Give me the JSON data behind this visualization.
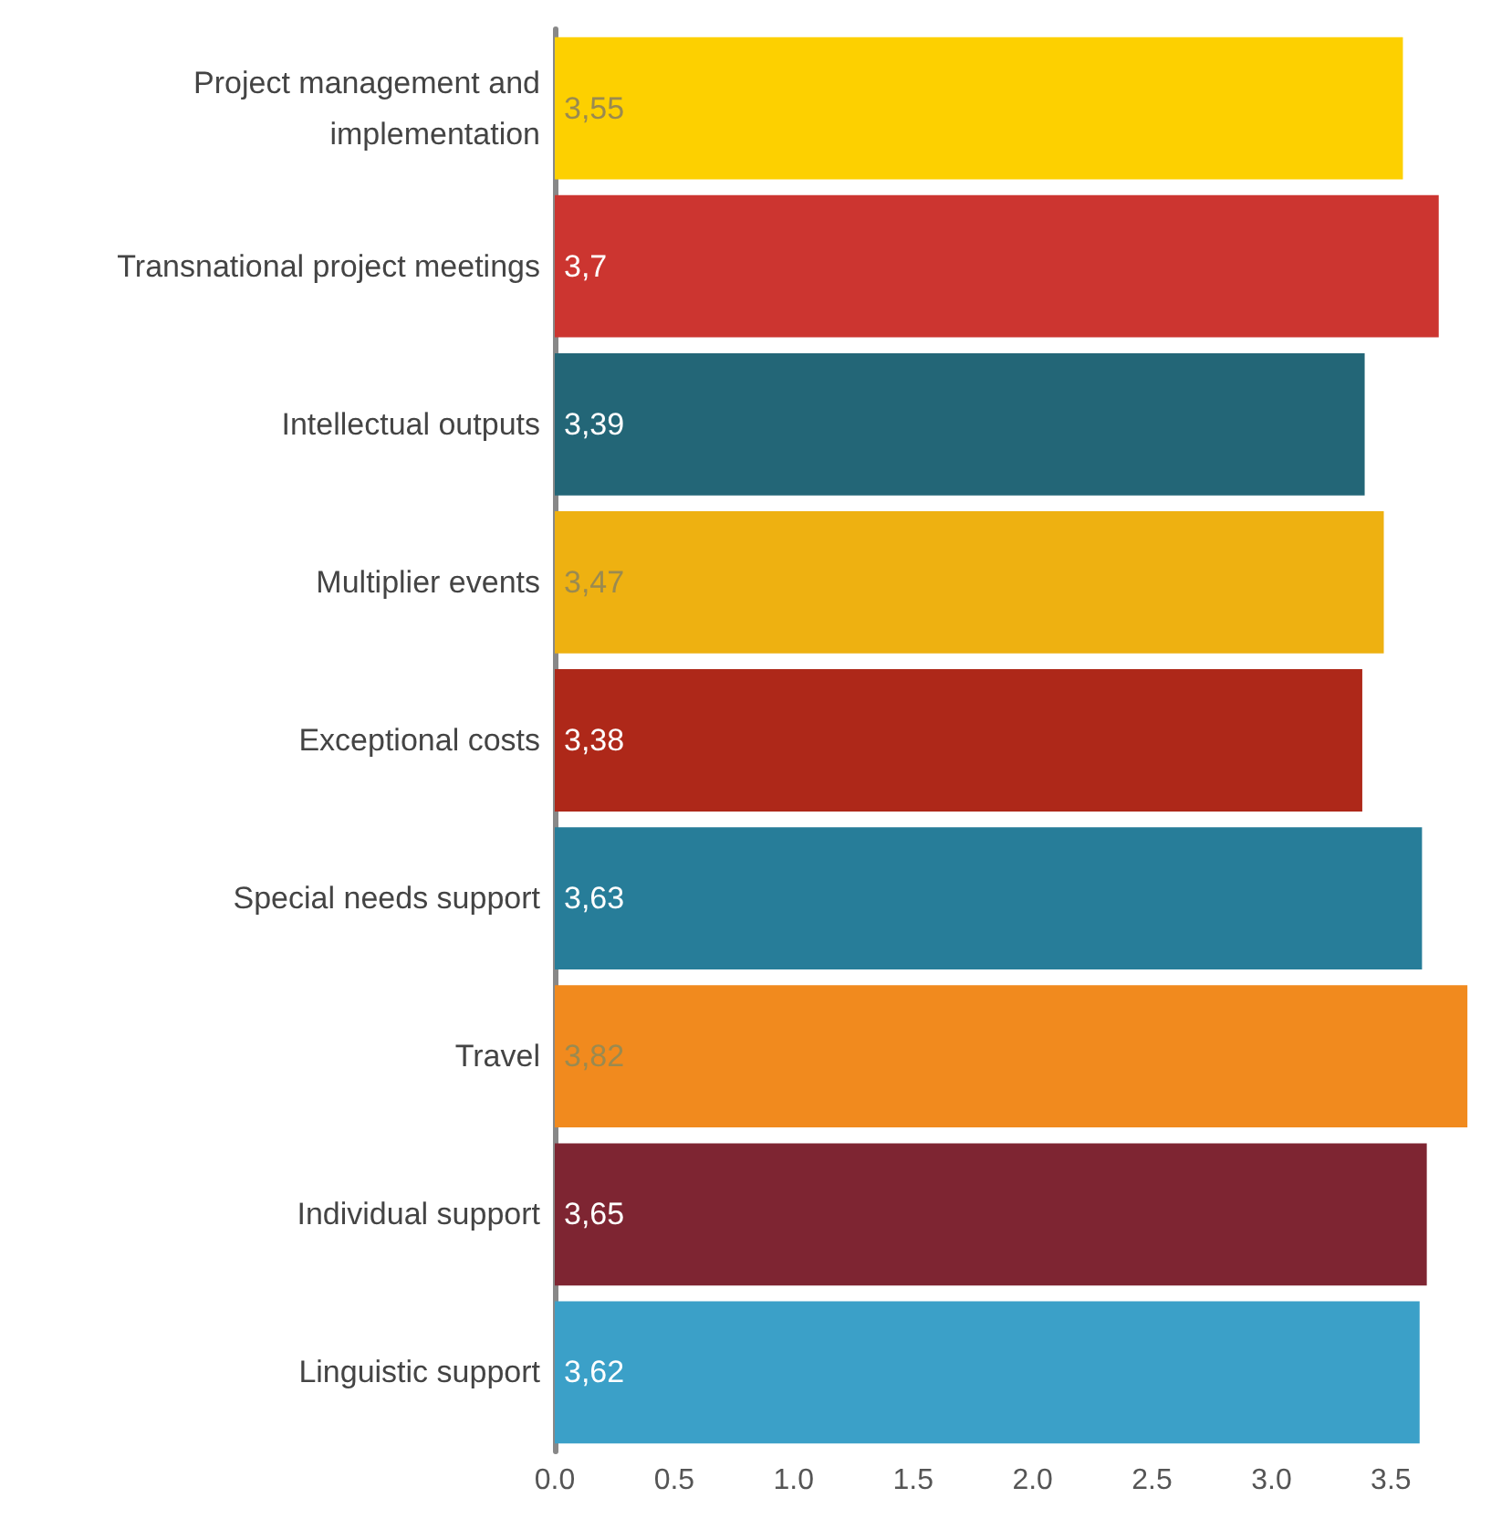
{
  "chart_data": {
    "type": "bar",
    "orientation": "horizontal",
    "categories": [
      "Project management and\nimplementation",
      "Transnational project meetings",
      "Intellectual outputs",
      "Multiplier events",
      "Exceptional costs",
      "Special needs support",
      "Travel",
      "Individual support",
      "Linguistic support"
    ],
    "values": [
      3.55,
      3.7,
      3.39,
      3.47,
      3.38,
      3.63,
      3.82,
      3.65,
      3.62
    ],
    "value_labels": [
      "3,55",
      "3,7",
      "3,39",
      "3,47",
      "3,38",
      "3,63",
      "3,82",
      "3,65",
      "3,62"
    ],
    "colors": [
      "#fdd000",
      "#cc3530",
      "#236677",
      "#eeb111",
      "#ae2819",
      "#277d99",
      "#f18a1e",
      "#7e2532",
      "#3ba0c8"
    ],
    "xlim": [
      0,
      3.85
    ],
    "xticks": [
      {
        "value": 0,
        "label": "0.0"
      },
      {
        "value": 0.5,
        "label": "0.5"
      },
      {
        "value": 1,
        "label": "1.0"
      },
      {
        "value": 1.5,
        "label": "1.5"
      },
      {
        "value": 2,
        "label": "2.0"
      },
      {
        "value": 2.5,
        "label": "2.5"
      },
      {
        "value": 3,
        "label": "3.0"
      },
      {
        "value": 3.5,
        "label": "3.5"
      }
    ],
    "grid": false
  }
}
